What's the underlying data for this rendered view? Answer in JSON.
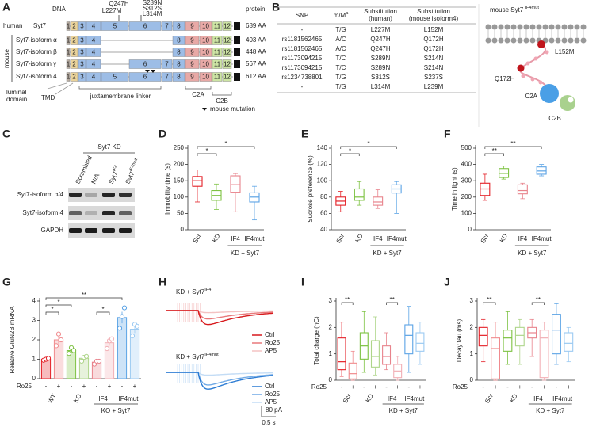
{
  "panel_labels": [
    "A",
    "B",
    "C",
    "D",
    "E",
    "F",
    "G",
    "H",
    "I",
    "J"
  ],
  "panel_a": {
    "dna": "DNA",
    "protein": "protein",
    "mutations": [
      "Q247H",
      "L227M",
      "S289N",
      "S312S",
      "L314M"
    ],
    "mouse": "mouse",
    "rows": [
      {
        "species": "human",
        "name": "Syt7",
        "exons": [
          "1",
          "2",
          "3",
          "4",
          "5",
          "6",
          "7",
          "8",
          "9",
          "10",
          "11",
          "12"
        ],
        "length": "689 AA"
      },
      {
        "name": "Syt7-isoform α",
        "exons": [
          "1",
          "2",
          "3",
          "4",
          "8",
          "9",
          "10",
          "11",
          "12"
        ],
        "length": "403 AA"
      },
      {
        "name": "Syt7-isoform β",
        "exons": [
          "1",
          "2",
          "3",
          "4",
          "8",
          "9",
          "10",
          "11",
          "12"
        ],
        "length": "448 AA"
      },
      {
        "name": "Syt7-isoform γ",
        "exons": [
          "1",
          "2",
          "3",
          "4",
          "6",
          "7",
          "8",
          "9",
          "10",
          "11",
          "12"
        ],
        "length": "567 AA"
      },
      {
        "name": "Syt7-isoform 4",
        "exons": [
          "1",
          "2",
          "3",
          "4",
          "5",
          "6",
          "7",
          "8",
          "9",
          "10",
          "11",
          "12"
        ],
        "length": "612 AA"
      }
    ],
    "luminal_domain": [
      "luminal",
      "domain"
    ],
    "tmd": "TMD",
    "linker": "juxtamembrane linker",
    "c2a": "C2A",
    "c2b": "C2B",
    "legend": "mouse mutation"
  },
  "panel_b": {
    "header": {
      "snp": "SNP",
      "mm": {
        "text": "m/M",
        "sup": "a"
      },
      "human": [
        "Substitution",
        "(human)"
      ],
      "mouse": [
        "Substitution",
        "(mouse isoform4)"
      ]
    },
    "rows": [
      [
        "-",
        "T/G",
        "L227M",
        "L152M"
      ],
      [
        "rs1181562465",
        "A/C",
        "Q247H",
        "Q172H"
      ],
      [
        "rs1181562465",
        "A/C",
        "Q247H",
        "Q172H"
      ],
      [
        "rs1173094215",
        "T/C",
        "S289N",
        "S214N"
      ],
      [
        "rs1173094215",
        "T/C",
        "S289N",
        "S214N"
      ],
      [
        "rs1234738801",
        "T/G",
        "S312S",
        "S237S"
      ],
      [
        "-",
        "T/G",
        "L314M",
        "L239M"
      ]
    ],
    "diagram": {
      "title": {
        "text": "mouse Syt7 ",
        "sup": "IF4mut"
      },
      "mutation_1": "L152M",
      "mutation_2": "Q172H",
      "c2a": "C2A",
      "c2b": "C2B"
    }
  },
  "panel_c": {
    "bracket": "Syt7 KD",
    "lanes": [
      "Scrambled",
      "N/A",
      {
        "text": "Syt7",
        "sup": "IF4"
      },
      {
        "text": "Syt7",
        "sup": "IF4mut"
      }
    ],
    "rows": [
      "Syt7-isoform α/4",
      "Syt7-isoform 4",
      "GAPDH"
    ]
  },
  "panel_h": {
    "traces": [
      {
        "title": {
          "text": "KD + Syt7",
          "sup": "IF4"
        },
        "legend": [
          {
            "name": "Ctrl",
            "color": "#d7191c"
          },
          {
            "name": "Ro25",
            "color": "#e8787a"
          },
          {
            "name": "AP5",
            "color": "#f4c2c2"
          }
        ]
      },
      {
        "title": {
          "text": "KD + Syt7",
          "sup": "IF4mut"
        },
        "legend": [
          {
            "name": "Ctrl",
            "color": "#2b7bd3"
          },
          {
            "name": "Ro25",
            "color": "#6fa9e6"
          },
          {
            "name": "AP5",
            "color": "#c3dcf5"
          }
        ]
      }
    ],
    "scale_y": "80 pA",
    "scale_x": "0.5 s"
  },
  "chart_data": [
    {
      "type": "box",
      "ylabel": "Immobility time (s)",
      "ylim": [
        0,
        250
      ],
      "yticks": [
        0,
        50,
        100,
        150,
        200,
        250
      ],
      "boxes": [
        {
          "category": "Scr",
          "color": "#e41f26",
          "low": 85,
          "q1": 133,
          "median": 150,
          "q3": 163,
          "high": 183
        },
        {
          "category": "KD",
          "color": "#7dc242",
          "low": 62,
          "q1": 90,
          "median": 105,
          "q3": 120,
          "high": 140
        },
        {
          "category": "IF4",
          "color": "#e8838c",
          "low": 55,
          "q1": 115,
          "median": 138,
          "q3": 165,
          "high": 172
        },
        {
          "category": "IF4mut",
          "color": "#5ba3e5",
          "low": 30,
          "q1": 85,
          "median": 100,
          "q3": 113,
          "high": 133
        }
      ],
      "group_label": "KD + Syt7",
      "significance": [
        {
          "between": [
            "Scr",
            "IF4mut"
          ],
          "label": "*"
        },
        {
          "between": [
            "Scr",
            "KD"
          ],
          "label": "*"
        }
      ]
    },
    {
      "type": "box",
      "ylabel": "Sucrose preference (%)",
      "ylim": [
        40,
        140
      ],
      "yticks": [
        40,
        60,
        80,
        100,
        120,
        140
      ],
      "boxes": [
        {
          "category": "Scr",
          "color": "#e41f26",
          "low": 62,
          "q1": 70,
          "median": 75,
          "q3": 80,
          "high": 87
        },
        {
          "category": "KD",
          "color": "#7dc242",
          "low": 70,
          "q1": 76,
          "median": 80,
          "q3": 90,
          "high": 99
        },
        {
          "category": "IF4",
          "color": "#e8838c",
          "low": 66,
          "q1": 70,
          "median": 74,
          "q3": 80,
          "high": 89
        },
        {
          "category": "IF4mut",
          "color": "#5ba3e5",
          "low": 60,
          "q1": 85,
          "median": 90,
          "q3": 95,
          "high": 99
        }
      ],
      "group_label": "KD + Syt7",
      "significance": [
        {
          "between": [
            "Scr",
            "IF4mut"
          ],
          "label": "*"
        },
        {
          "between": [
            "Scr",
            "KD"
          ],
          "label": "*"
        }
      ]
    },
    {
      "type": "box",
      "ylabel": "Time in light (s)",
      "ylim": [
        0,
        500
      ],
      "yticks": [
        0,
        100,
        200,
        300,
        400,
        500
      ],
      "boxes": [
        {
          "category": "Scr",
          "color": "#e41f26",
          "low": 180,
          "q1": 210,
          "median": 250,
          "q3": 285,
          "high": 340
        },
        {
          "category": "KD",
          "color": "#7dc242",
          "low": 310,
          "q1": 320,
          "median": 345,
          "q3": 375,
          "high": 390
        },
        {
          "category": "IF4",
          "color": "#e8838c",
          "low": 190,
          "q1": 220,
          "median": 240,
          "q3": 275,
          "high": 285
        },
        {
          "category": "IF4mut",
          "color": "#5ba3e5",
          "low": 330,
          "q1": 340,
          "median": 360,
          "q3": 385,
          "high": 400
        }
      ],
      "group_label": "KD + Syt7",
      "significance": [
        {
          "between": [
            "Scr",
            "IF4mut"
          ],
          "label": "**"
        },
        {
          "between": [
            "Scr",
            "KD"
          ],
          "label": "**"
        }
      ]
    },
    {
      "type": "bar",
      "ylabel": "Relative GluN2B mRNA",
      "ylim": [
        0,
        4
      ],
      "yticks": [
        0,
        1,
        2,
        3,
        4
      ],
      "row_label": "Ro25",
      "groups": [
        "WT",
        "KO",
        "IF4",
        "IF4mut"
      ],
      "conditions": [
        "-",
        "+"
      ],
      "bars": [
        {
          "group": "WT",
          "condition": "-",
          "color": "#e41f26",
          "value": 1.0,
          "error": 0.03,
          "points": [
            0.95,
            1.0,
            1.05
          ]
        },
        {
          "group": "WT",
          "condition": "+",
          "color": "#f08a8d",
          "value": 2.0,
          "error": 0.2,
          "points": [
            1.7,
            2.3,
            2.0
          ]
        },
        {
          "group": "KO",
          "condition": "-",
          "color": "#7dc242",
          "value": 1.45,
          "error": 0.1,
          "points": [
            1.3,
            1.6,
            1.45
          ]
        },
        {
          "group": "KO",
          "condition": "+",
          "color": "#aed58a",
          "value": 1.05,
          "error": 0.08,
          "points": [
            0.9,
            1.1,
            1.15
          ]
        },
        {
          "group": "IF4",
          "condition": "-",
          "color": "#e8838c",
          "value": 0.85,
          "error": 0.05,
          "points": [
            0.75,
            0.9,
            0.9
          ]
        },
        {
          "group": "IF4",
          "condition": "+",
          "color": "#f2b0b6",
          "value": 1.85,
          "error": 0.15,
          "points": [
            1.55,
            1.95,
            2.05
          ]
        },
        {
          "group": "IF4mut",
          "condition": "-",
          "color": "#5ba3e5",
          "value": 3.15,
          "error": 0.3,
          "points": [
            2.6,
            3.2,
            3.65
          ]
        },
        {
          "group": "IF4mut",
          "condition": "+",
          "color": "#9ccaf2",
          "value": 2.55,
          "error": 0.2,
          "points": [
            2.2,
            2.8,
            2.7
          ]
        }
      ],
      "group_label": "KO + Syt7",
      "significance": [
        {
          "from": {
            "group": "WT",
            "condition": "-"
          },
          "to": {
            "group": "IF4mut",
            "condition": "-"
          },
          "label": "**"
        },
        {
          "from": {
            "group": "WT",
            "condition": "-"
          },
          "to": {
            "group": "KO",
            "condition": "-"
          },
          "label": "*"
        },
        {
          "from": {
            "group": "WT",
            "condition": "-"
          },
          "to": {
            "group": "WT",
            "condition": "+"
          },
          "label": "*"
        },
        {
          "from": {
            "group": "IF4",
            "condition": "-"
          },
          "to": {
            "group": "IF4",
            "condition": "+"
          },
          "label": "*"
        }
      ]
    },
    {
      "type": "box",
      "ylabel": "Total charge (nC)",
      "ylim": [
        0,
        3
      ],
      "yticks": [
        0,
        1,
        2,
        3
      ],
      "row_label": "Ro25",
      "groups": [
        "Scr",
        "KD",
        "IF4",
        "IF4mut"
      ],
      "conditions": [
        "-",
        "+"
      ],
      "boxes": [
        {
          "group": "Scr",
          "condition": "-",
          "color": "#e41f26",
          "low": 0.15,
          "q1": 0.4,
          "median": 0.7,
          "q3": 1.6,
          "high": 2.2
        },
        {
          "group": "Scr",
          "condition": "+",
          "color": "#f08a8d",
          "low": 0,
          "q1": 0.05,
          "median": 0.25,
          "q3": 0.65,
          "high": 1.1
        },
        {
          "group": "KD",
          "condition": "-",
          "color": "#7dc242",
          "low": 0.3,
          "q1": 0.8,
          "median": 1.3,
          "q3": 1.8,
          "high": 2.6
        },
        {
          "group": "KD",
          "condition": "+",
          "color": "#aed58a",
          "low": 0.2,
          "q1": 0.5,
          "median": 0.9,
          "q3": 1.5,
          "high": 2.4
        },
        {
          "group": "IF4",
          "condition": "-",
          "color": "#e8838c",
          "low": 0.4,
          "q1": 0.6,
          "median": 0.9,
          "q3": 1.3,
          "high": 1.8
        },
        {
          "group": "IF4",
          "condition": "+",
          "color": "#f2b0b6",
          "low": 0,
          "q1": 0.1,
          "median": 0.35,
          "q3": 0.6,
          "high": 0.9
        },
        {
          "group": "IF4mut",
          "condition": "-",
          "color": "#5ba3e5",
          "low": 0.3,
          "q1": 1.0,
          "median": 1.7,
          "q3": 2.1,
          "high": 2.8
        },
        {
          "group": "IF4mut",
          "condition": "+",
          "color": "#9ccaf2",
          "low": 0.6,
          "q1": 1.1,
          "median": 1.4,
          "q3": 1.8,
          "high": 2.2
        }
      ],
      "group_label": "KD + Syt7",
      "significance": [
        {
          "group": "Scr",
          "label": "**"
        },
        {
          "group": "IF4",
          "label": "**"
        }
      ]
    },
    {
      "type": "box",
      "ylabel": "Decay tau (ms)",
      "ylim": [
        0,
        3
      ],
      "yticks": [
        0,
        1,
        2,
        3
      ],
      "row_label": "Ro25",
      "groups": [
        "Scr",
        "KD",
        "IF4",
        "IF4mut"
      ],
      "conditions": [
        "-",
        "+"
      ],
      "boxes": [
        {
          "group": "Scr",
          "condition": "-",
          "color": "#e41f26",
          "low": 0.7,
          "q1": 1.3,
          "median": 1.7,
          "q3": 2.0,
          "high": 2.3
        },
        {
          "group": "Scr",
          "condition": "+",
          "color": "#f08a8d",
          "low": 0,
          "q1": 0.05,
          "median": 1.2,
          "q3": 1.6,
          "high": 2.2
        },
        {
          "group": "KD",
          "condition": "-",
          "color": "#7dc242",
          "low": 0.6,
          "q1": 1.1,
          "median": 1.6,
          "q3": 1.9,
          "high": 2.6
        },
        {
          "group": "KD",
          "condition": "+",
          "color": "#aed58a",
          "low": 0.6,
          "q1": 1.3,
          "median": 1.7,
          "q3": 2.0,
          "high": 2.3
        },
        {
          "group": "IF4",
          "condition": "-",
          "color": "#e8838c",
          "low": 0.9,
          "q1": 1.6,
          "median": 1.8,
          "q3": 2.0,
          "high": 2.3
        },
        {
          "group": "IF4",
          "condition": "+",
          "color": "#f2b0b6",
          "low": 0,
          "q1": 0.1,
          "median": 1.6,
          "q3": 1.9,
          "high": 2.2
        },
        {
          "group": "IF4mut",
          "condition": "-",
          "color": "#5ba3e5",
          "low": 0.6,
          "q1": 1.0,
          "median": 1.9,
          "q3": 2.5,
          "high": 2.9
        },
        {
          "group": "IF4mut",
          "condition": "+",
          "color": "#9ccaf2",
          "low": 0.7,
          "q1": 1.1,
          "median": 1.4,
          "q3": 1.8,
          "high": 2.0
        }
      ],
      "group_label": "KD + Syt7",
      "significance": [
        {
          "group": "Scr",
          "label": "**"
        },
        {
          "group": "IF4",
          "label": "**"
        }
      ]
    }
  ]
}
